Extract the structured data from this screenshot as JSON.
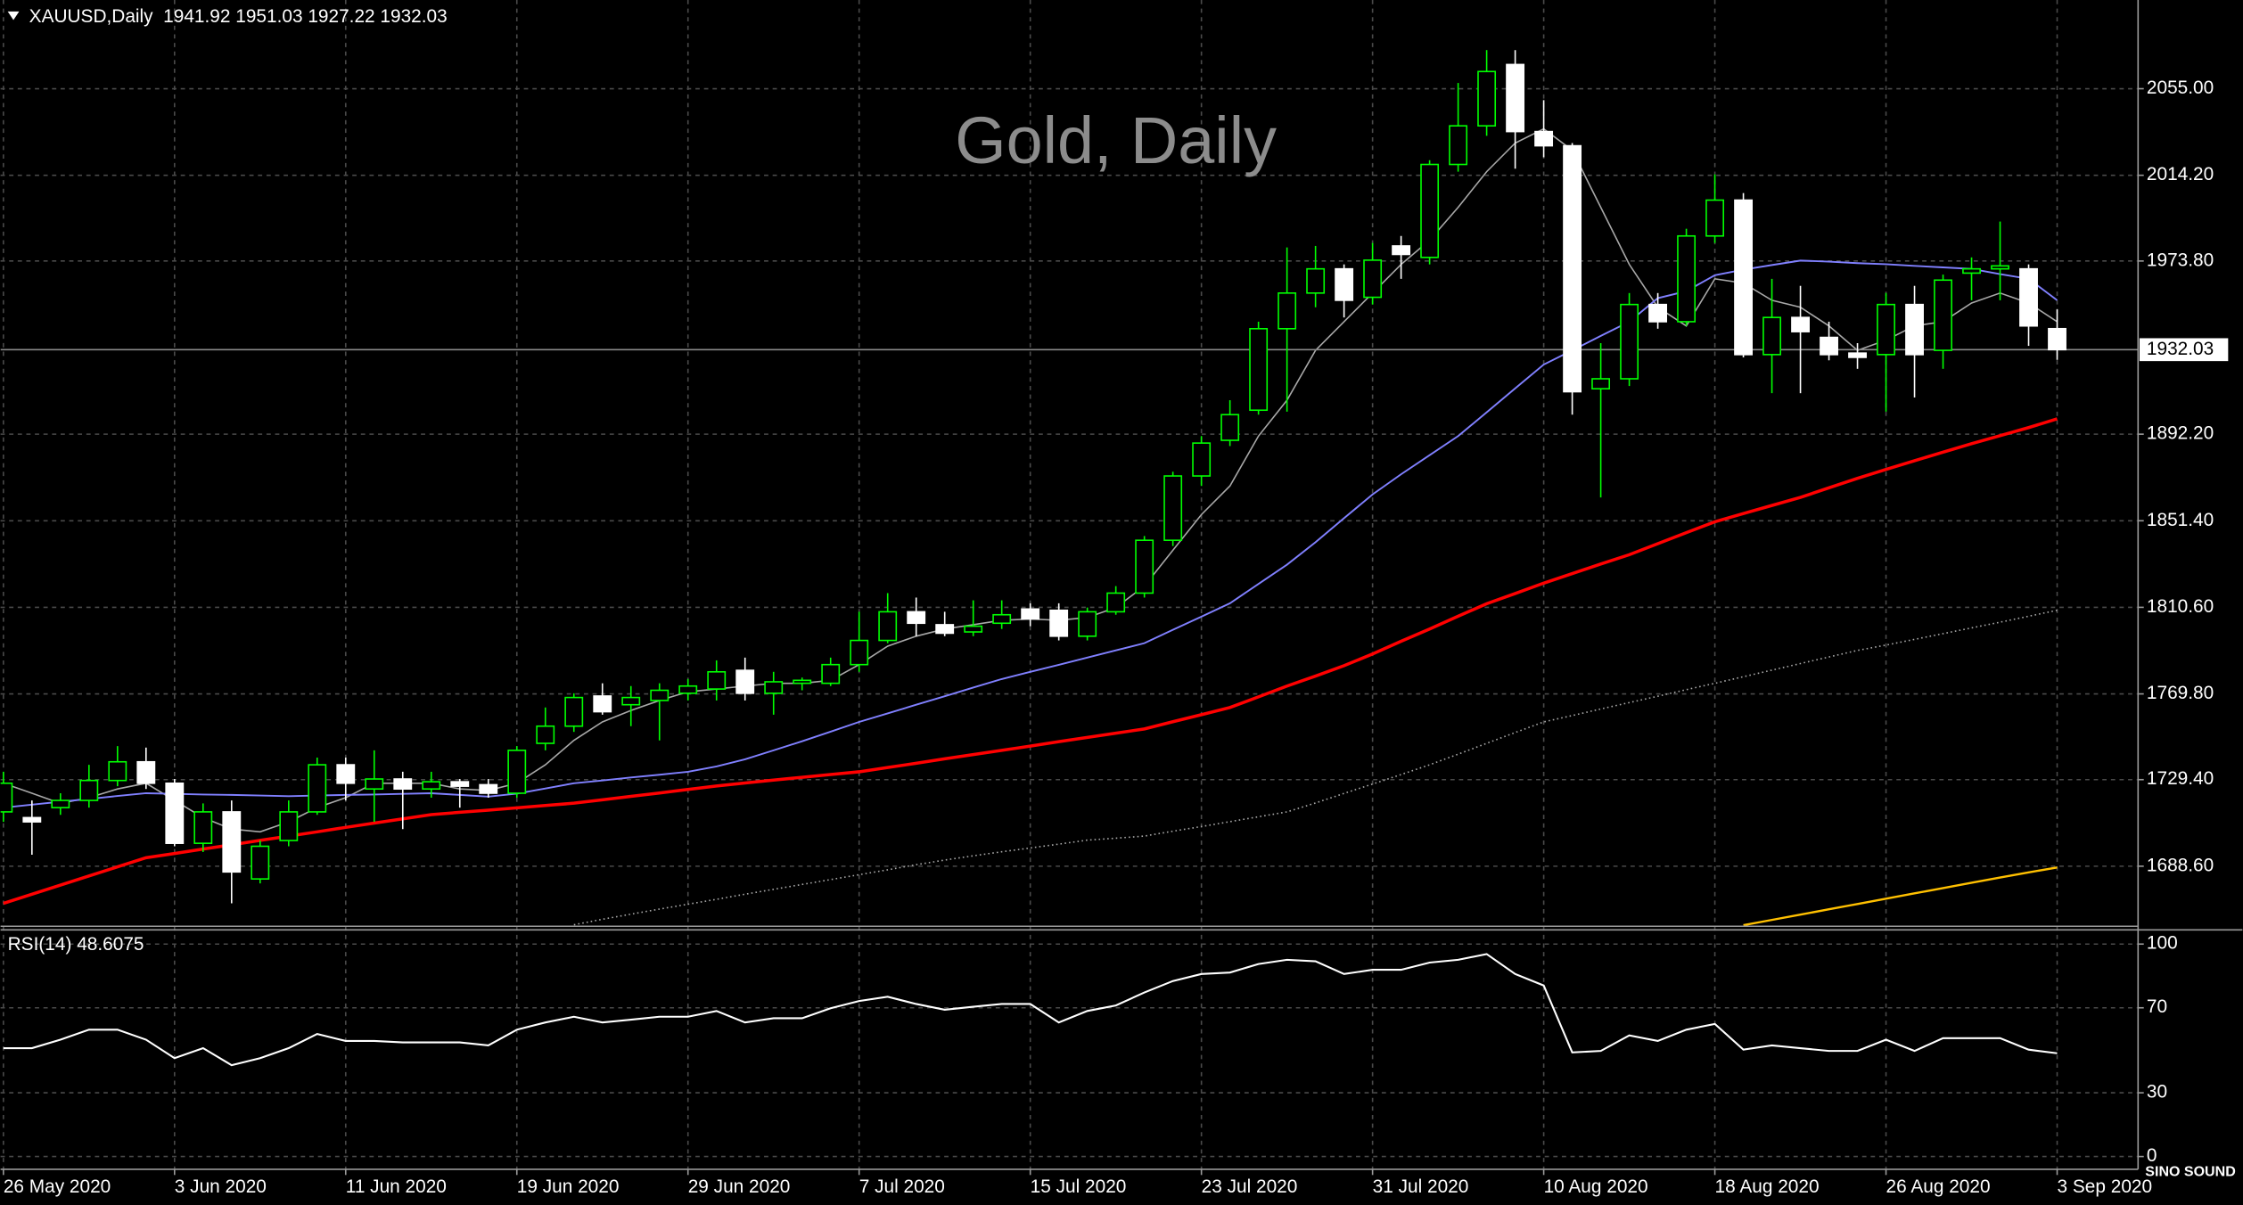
{
  "chart_data": [
    {
      "type": "candlestick",
      "title": "Gold, Daily",
      "symbol": "XAUUSD,Daily",
      "x": [
        "2020-05-26",
        "2020-05-27",
        "2020-05-28",
        "2020-05-29",
        "2020-06-01",
        "2020-06-02",
        "2020-06-03",
        "2020-06-04",
        "2020-06-05",
        "2020-06-08",
        "2020-06-09",
        "2020-06-10",
        "2020-06-11",
        "2020-06-12",
        "2020-06-15",
        "2020-06-16",
        "2020-06-17",
        "2020-06-18",
        "2020-06-19",
        "2020-06-22",
        "2020-06-23",
        "2020-06-24",
        "2020-06-25",
        "2020-06-26",
        "2020-06-29",
        "2020-06-30",
        "2020-07-01",
        "2020-07-02",
        "2020-07-03",
        "2020-07-06",
        "2020-07-07",
        "2020-07-08",
        "2020-07-09",
        "2020-07-10",
        "2020-07-13",
        "2020-07-14",
        "2020-07-15",
        "2020-07-16",
        "2020-07-17",
        "2020-07-20",
        "2020-07-21",
        "2020-07-22",
        "2020-07-23",
        "2020-07-24",
        "2020-07-27",
        "2020-07-28",
        "2020-07-29",
        "2020-07-30",
        "2020-07-31",
        "2020-08-03",
        "2020-08-04",
        "2020-08-05",
        "2020-08-06",
        "2020-08-07",
        "2020-08-10",
        "2020-08-11",
        "2020-08-12",
        "2020-08-13",
        "2020-08-14",
        "2020-08-17",
        "2020-08-18",
        "2020-08-19",
        "2020-08-20",
        "2020-08-21",
        "2020-08-24",
        "2020-08-25",
        "2020-08-26",
        "2020-08-27",
        "2020-08-28",
        "2020-08-31",
        "2020-09-01",
        "2020-09-02",
        "2020-09-03"
      ],
      "xticks": [
        {
          "value": "2020-05-26",
          "label": "26 May 2020"
        },
        {
          "value": "2020-06-03",
          "label": "3 Jun 2020"
        },
        {
          "value": "2020-06-11",
          "label": "11 Jun 2020"
        },
        {
          "value": "2020-06-19",
          "label": "19 Jun 2020"
        },
        {
          "value": "2020-06-29",
          "label": "29 Jun 2020"
        },
        {
          "value": "2020-07-07",
          "label": "7 Jul 2020"
        },
        {
          "value": "2020-07-15",
          "label": "15 Jul 2020"
        },
        {
          "value": "2020-07-23",
          "label": "23 Jul 2020"
        },
        {
          "value": "2020-07-31",
          "label": "31 Jul 2020"
        },
        {
          "value": "2020-08-10",
          "label": "10 Aug 2020"
        },
        {
          "value": "2020-08-18",
          "label": "18 Aug 2020"
        },
        {
          "value": "2020-08-26",
          "label": "26 Aug 2020"
        },
        {
          "value": "2020-09-03",
          "label": "3 Sep 2020"
        }
      ],
      "open": [
        1714.2,
        1711.5,
        1716.2,
        1719.6,
        1729.0,
        1737.8,
        1727.7,
        1699.4,
        1714.2,
        1682.6,
        1700.7,
        1714.2,
        1736.4,
        1725.0,
        1729.7,
        1725.0,
        1728.4,
        1727.0,
        1723.0,
        1746.5,
        1754.6,
        1768.8,
        1764.7,
        1766.7,
        1770.1,
        1772.1,
        1780.9,
        1770.1,
        1774.8,
        1774.8,
        1783.6,
        1795.0,
        1808.5,
        1802.4,
        1799.0,
        1803.1,
        1809.8,
        1809.2,
        1797.0,
        1808.5,
        1817.3,
        1842.2,
        1872.5,
        1889.3,
        1903.5,
        1941.9,
        1958.7,
        1970.1,
        1956.7,
        1980.9,
        1975.5,
        2019.3,
        2037.5,
        2066.4,
        2034.8,
        2028.1,
        1913.6,
        1918.3,
        1953.3,
        1945.2,
        1985.6,
        2002.5,
        1929.7,
        1947.2,
        1937.8,
        1930.4,
        1929.7,
        1953.3,
        1931.7,
        1968.1,
        1970.1,
        1970.1,
        1941.92
      ],
      "high": [
        1733.1,
        1719.6,
        1723.0,
        1736.4,
        1745.2,
        1744.5,
        1729.7,
        1718.2,
        1719.6,
        1700.7,
        1719.6,
        1739.8,
        1739.8,
        1743.2,
        1733.1,
        1733.1,
        1729.7,
        1729.7,
        1745.2,
        1763.4,
        1770.1,
        1774.8,
        1773.5,
        1774.8,
        1776.8,
        1785.6,
        1786.9,
        1780.2,
        1777.5,
        1786.9,
        1808.5,
        1817.3,
        1815.2,
        1808.5,
        1813.9,
        1813.9,
        1812.5,
        1812.5,
        1810.5,
        1820.6,
        1844.2,
        1874.5,
        1891.3,
        1908.2,
        1945.2,
        1980.2,
        1980.9,
        1972.2,
        1982.3,
        1985.6,
        2021.3,
        2057.7,
        2073.2,
        2073.2,
        2049.6,
        2029.4,
        1935.1,
        1958.7,
        1958.7,
        1989.0,
        2014.6,
        2005.8,
        1965.4,
        1962.1,
        1945.2,
        1935.1,
        1958.7,
        1962.1,
        1967.4,
        1975.5,
        1992.4,
        1972.2,
        1951.03
      ],
      "low": [
        1709.5,
        1694.0,
        1712.8,
        1716.2,
        1726.3,
        1725.0,
        1698.0,
        1695.3,
        1671.1,
        1680.5,
        1698.0,
        1712.8,
        1719.6,
        1709.5,
        1706.1,
        1720.9,
        1716.2,
        1720.9,
        1720.9,
        1743.2,
        1751.9,
        1760.0,
        1754.6,
        1747.9,
        1766.7,
        1766.7,
        1766.7,
        1760.0,
        1771.5,
        1773.5,
        1780.2,
        1793.7,
        1797.0,
        1797.0,
        1797.0,
        1800.4,
        1801.7,
        1795.0,
        1795.0,
        1807.1,
        1815.2,
        1839.5,
        1867.8,
        1886.6,
        1901.4,
        1902.8,
        1952.0,
        1947.2,
        1953.3,
        1965.4,
        1972.2,
        2015.9,
        2032.8,
        2017.3,
        2022.7,
        1901.4,
        1862.4,
        1914.9,
        1941.9,
        1943.2,
        1982.3,
        1928.4,
        1911.5,
        1911.5,
        1927.0,
        1923.0,
        1902.8,
        1909.5,
        1923.0,
        1955.3,
        1955.3,
        1933.8,
        1927.22
      ],
      "close": [
        1727.7,
        1709.5,
        1719.6,
        1729.0,
        1737.8,
        1727.7,
        1699.4,
        1714.2,
        1685.9,
        1698.0,
        1714.2,
        1736.4,
        1727.7,
        1729.7,
        1725.0,
        1728.4,
        1726.3,
        1723.0,
        1743.2,
        1754.6,
        1768.1,
        1761.4,
        1768.1,
        1771.5,
        1773.5,
        1780.2,
        1770.1,
        1775.5,
        1776.2,
        1783.6,
        1795.0,
        1808.5,
        1803.1,
        1798.4,
        1801.7,
        1807.1,
        1805.1,
        1797.0,
        1808.5,
        1817.3,
        1842.2,
        1872.5,
        1888.0,
        1901.4,
        1941.9,
        1958.7,
        1970.1,
        1955.3,
        1974.2,
        1976.9,
        2019.3,
        2037.5,
        2063.1,
        2034.8,
        2028.1,
        1912.2,
        1918.3,
        1953.3,
        1945.2,
        1985.6,
        2002.5,
        1929.7,
        1947.2,
        1940.5,
        1929.7,
        1928.4,
        1953.3,
        1929.7,
        1964.8,
        1970.1,
        1971.5,
        1943.2,
        1932.03
      ],
      "up_color": "#00ff00",
      "down_color": "#ffffff",
      "ylim": [
        1660.3,
        2096.8
      ],
      "yticks": [
        {
          "value": 2055,
          "label": "2055.00"
        },
        {
          "value": 2014.2,
          "label": "2014.20"
        },
        {
          "value": 1973.8,
          "label": "1973.80"
        },
        {
          "value": 1892.2,
          "label": "1892.20"
        },
        {
          "value": 1851.4,
          "label": "1851.40"
        },
        {
          "value": 1810.6,
          "label": "1810.60"
        },
        {
          "value": 1769.8,
          "label": "1769.80"
        },
        {
          "value": 1729.4,
          "label": "1729.40"
        },
        {
          "value": 1688.6,
          "label": "1688.60"
        }
      ],
      "grid": true,
      "lines": [
        {
          "color": "#a8a8a8",
          "style": "solid",
          "width": 1,
          "values": [
            1727.7,
            1723.0,
            1718.2,
            1720.9,
            1725.0,
            1727.7,
            1719.6,
            1711.5,
            1706.1,
            1704.8,
            1709.5,
            1716.2,
            1720.9,
            1727.7,
            1727.7,
            1727.7,
            1725.0,
            1724.3,
            1727.7,
            1736.4,
            1747.9,
            1756.6,
            1762.0,
            1766.7,
            1770.8,
            1772.1,
            1773.5,
            1774.8,
            1774.8,
            1776.2,
            1783.6,
            1792.3,
            1797.0,
            1800.4,
            1802.4,
            1804.5,
            1805.1,
            1804.5,
            1805.8,
            1810.5,
            1820.6,
            1837.5,
            1854.3,
            1867.8,
            1891.3,
            1908.2,
            1931.7,
            1945.2,
            1958.7,
            1972.2,
            1983.6,
            1999.1,
            2015.9,
            2029.4,
            2036.1,
            2026.0,
            1999.1,
            1972.2,
            1952.0,
            1943.2,
            1965.4,
            1963.4,
            1955.3,
            1952.0,
            1943.2,
            1931.7,
            1936.5,
            1943.2,
            1945.2,
            1954.0,
            1958.7,
            1954.0,
            1945.2
          ]
        },
        {
          "color": "#8080ff",
          "style": "solid",
          "width": 1.2,
          "values": [
            1716.2,
            1717.6,
            1719.0,
            1720.3,
            1721.7,
            1723.0,
            1722.7,
            1722.4,
            1722.2,
            1721.9,
            1721.6,
            1721.9,
            1722.2,
            1722.4,
            1722.7,
            1723.0,
            1722.2,
            1721.4,
            1722.8,
            1725.2,
            1727.7,
            1729.0,
            1730.4,
            1731.7,
            1733.1,
            1735.6,
            1739.0,
            1743.2,
            1747.5,
            1752.0,
            1756.6,
            1760.6,
            1764.7,
            1768.7,
            1772.8,
            1776.8,
            1780.2,
            1783.5,
            1786.9,
            1790.3,
            1793.7,
            1800.0,
            1806.2,
            1812.5,
            1821.6,
            1830.7,
            1841.3,
            1852.6,
            1863.8,
            1873.3,
            1882.3,
            1891.3,
            1902.5,
            1913.8,
            1925.0,
            1931.7,
            1938.5,
            1945.2,
            1956.3,
            1959.6,
            1967.1,
            1969.7,
            1971.9,
            1974.0,
            1973.5,
            1972.8,
            1972.3,
            1971.5,
            1970.8,
            1970.1,
            1967.6,
            1965.4,
            1955.3
          ]
        },
        {
          "color": "#ff0000",
          "style": "solid",
          "width": 2.2,
          "values": [
            1671.1,
            1675.4,
            1679.7,
            1684.0,
            1688.3,
            1692.6,
            1694.6,
            1696.7,
            1698.7,
            1700.8,
            1702.8,
            1704.8,
            1706.9,
            1708.9,
            1710.9,
            1712.9,
            1714.0,
            1715.0,
            1716.1,
            1717.2,
            1718.3,
            1719.9,
            1721.5,
            1723.1,
            1724.8,
            1726.4,
            1727.8,
            1729.2,
            1730.5,
            1731.8,
            1733.1,
            1735.1,
            1737.1,
            1739.2,
            1741.2,
            1743.2,
            1745.2,
            1747.3,
            1749.3,
            1751.3,
            1753.3,
            1756.7,
            1760.0,
            1763.4,
            1768.4,
            1773.5,
            1778.2,
            1783.1,
            1788.6,
            1794.6,
            1800.4,
            1806.4,
            1812.3,
            1817.1,
            1822.0,
            1826.5,
            1831.0,
            1835.4,
            1840.6,
            1845.8,
            1850.9,
            1854.8,
            1858.6,
            1862.4,
            1866.9,
            1871.4,
            1875.6,
            1879.7,
            1883.7,
            1887.7,
            1891.5,
            1895.3,
            1899.4
          ]
        },
        {
          "color": "#a8a8a8",
          "style": "dotted",
          "width": 1,
          "values": [
            null,
            null,
            null,
            null,
            null,
            null,
            null,
            null,
            null,
            null,
            null,
            null,
            null,
            null,
            null,
            null,
            null,
            null,
            null,
            null,
            1661.0,
            1663.6,
            1666.0,
            1668.4,
            1670.7,
            1673.0,
            1675.4,
            1677.7,
            1680.0,
            1682.3,
            1684.6,
            1686.9,
            1689.3,
            1691.5,
            1693.5,
            1695.4,
            1697.2,
            1699.0,
            1700.9,
            1701.8,
            1702.8,
            1705.1,
            1707.3,
            1709.6,
            1711.9,
            1714.2,
            1718.4,
            1722.9,
            1727.3,
            1731.8,
            1736.4,
            1741.4,
            1746.5,
            1751.6,
            1756.6,
            1759.6,
            1762.7,
            1765.7,
            1768.7,
            1771.8,
            1774.8,
            1777.9,
            1781.0,
            1784.1,
            1787.2,
            1790.3,
            1792.8,
            1795.5,
            1798.2,
            1800.9,
            1803.6,
            1806.4,
            1809.2
          ]
        },
        {
          "color": "#ffc000",
          "style": "solid",
          "width": 1.5,
          "values": [
            null,
            null,
            null,
            null,
            null,
            null,
            null,
            null,
            null,
            null,
            null,
            null,
            null,
            null,
            null,
            null,
            null,
            null,
            null,
            null,
            null,
            null,
            null,
            null,
            null,
            null,
            null,
            null,
            null,
            null,
            null,
            null,
            null,
            null,
            null,
            null,
            null,
            null,
            null,
            null,
            null,
            null,
            null,
            null,
            null,
            null,
            null,
            null,
            null,
            null,
            null,
            null,
            null,
            null,
            null,
            null,
            null,
            null,
            null,
            null,
            null,
            1660.8,
            1663.3,
            1665.8,
            1668.3,
            1670.8,
            1673.3,
            1675.8,
            1678.3,
            1680.8,
            1683.3,
            1685.7,
            1688.0
          ]
        }
      ]
    },
    {
      "type": "line",
      "title": "RSI(14)",
      "color": "#ffffff",
      "values": [
        51.0,
        51.0,
        55.0,
        59.7,
        59.7,
        55.0,
        46.3,
        51.0,
        43.0,
        46.3,
        51.0,
        57.7,
        54.4,
        54.4,
        53.7,
        53.7,
        53.7,
        52.3,
        59.7,
        63.1,
        65.8,
        63.1,
        64.4,
        65.8,
        65.8,
        68.5,
        63.1,
        65.1,
        65.1,
        69.8,
        73.2,
        75.2,
        71.8,
        69.1,
        70.5,
        71.8,
        71.8,
        63.1,
        68.5,
        71.1,
        77.2,
        82.6,
        85.9,
        86.6,
        90.6,
        92.6,
        91.9,
        85.9,
        87.9,
        87.9,
        91.3,
        92.6,
        95.3,
        85.9,
        80.5,
        49.0,
        49.7,
        57.0,
        54.4,
        59.7,
        62.4,
        50.3,
        52.3,
        51.0,
        49.7,
        49.7,
        55.0,
        49.7,
        55.7,
        55.7,
        55.7,
        50.3,
        48.6075
      ],
      "ylim": [
        -6,
        106.7
      ],
      "yticks": [
        100,
        70,
        30,
        0
      ],
      "grid": true
    }
  ],
  "logo": "SINO SOUND"
}
